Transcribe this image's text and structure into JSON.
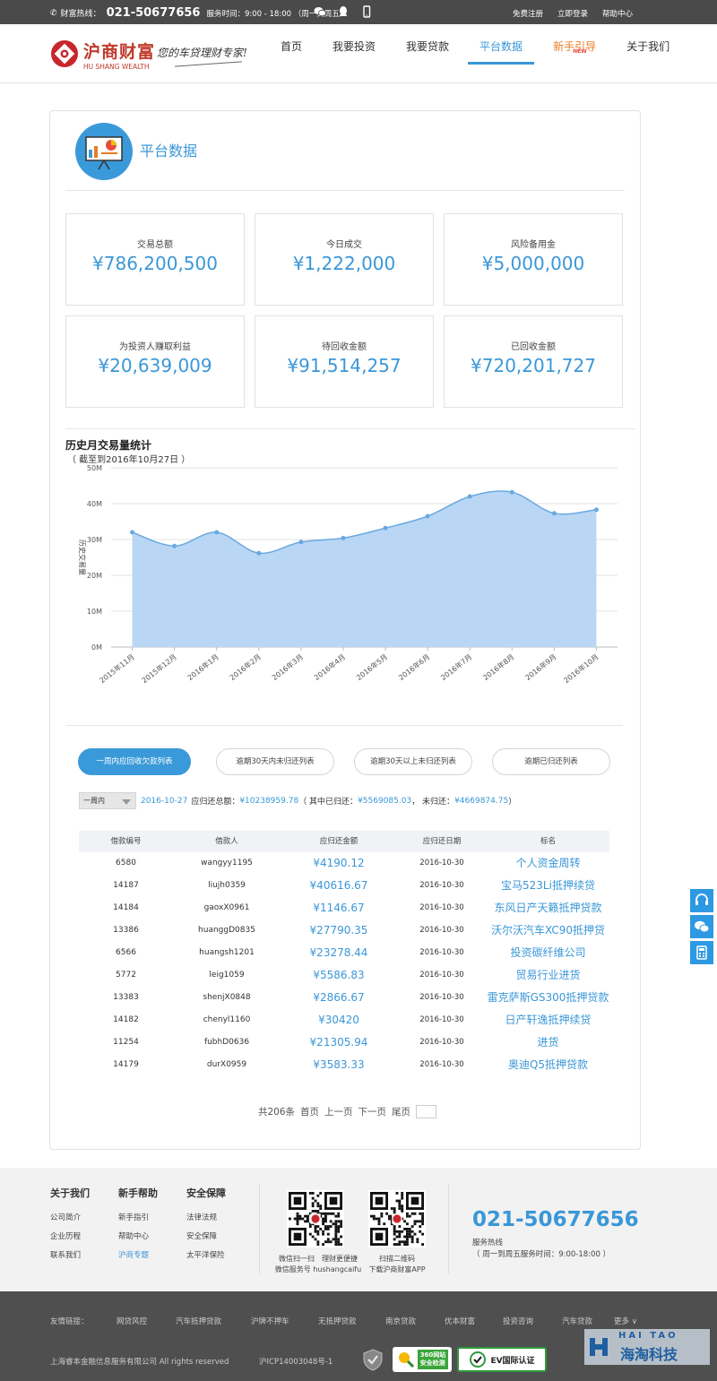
{
  "topbar": {
    "hotline_label": "财富热线：",
    "hotline_number": "021-50677656",
    "service_hours": "服务时间：9:00 - 18:00 （周一到周五）",
    "links": [
      "免费注册",
      "立即登录",
      "帮助中心"
    ]
  },
  "header": {
    "logo_cn": "沪商财富",
    "logo_en": "HU SHANG WEALTH",
    "slogan": "您的车贷理财专家!",
    "nav": [
      "首页",
      "我要投资",
      "我要贷款",
      "平台数据",
      "新手引导",
      "关于我们"
    ],
    "nav_active": "平台数据",
    "new_badge": "NEW"
  },
  "page": {
    "title": "平台数据"
  },
  "stats": [
    {
      "label": "交易总额",
      "value": "¥786,200,500"
    },
    {
      "label": "今日成交",
      "value": "¥1,222,000"
    },
    {
      "label": "风险备用金",
      "value": "¥5,000,000"
    },
    {
      "label": "为投资人赚取利益",
      "value": "¥20,639,009"
    },
    {
      "label": "待回收金额",
      "value": "¥91,514,257"
    },
    {
      "label": "已回收金额",
      "value": "¥720,201,727"
    }
  ],
  "chart_data": {
    "type": "area",
    "title": "历史月交易量统计",
    "subtitle": "（ 截至到2016年10月27日 ）",
    "ylabel": "历史交易量",
    "xlabel": "",
    "categories": [
      "2015年11月",
      "2015年12月",
      "2016年1月",
      "2016年2月",
      "2016年3月",
      "2016年4月",
      "2016年5月",
      "2016年6月",
      "2016年7月",
      "2016年8月",
      "2016年9月",
      "2016年10月"
    ],
    "values": [
      32,
      28.2,
      32,
      26.2,
      29.3,
      30.4,
      33.2,
      36.5,
      42,
      43.2,
      37.3,
      38.3
    ],
    "yticks": [
      "0M",
      "10M",
      "20M",
      "30M",
      "40M",
      "50M"
    ],
    "ylim": [
      0,
      50
    ],
    "grid": true,
    "color": "#b9d6f5",
    "line_color": "#6aa9e0"
  },
  "tabs": [
    "一周内应回收欠款列表",
    "逾期30天内未归还列表",
    "逾期30天以上未归还列表",
    "逾期已归还列表"
  ],
  "filter": {
    "select_value": "一周内",
    "date": "2016-10-27",
    "total_label": "应归还总额：",
    "total": "¥10238959.78",
    "paid_label": "（ 其中已归还：",
    "paid": "¥5569085.03",
    "unpaid_label": "， 未归还：",
    "unpaid": "¥4669874.75",
    "end": "）"
  },
  "table": {
    "headers": [
      "借款编号",
      "借款人",
      "应归还金额",
      "应归还日期",
      "标名"
    ],
    "rows": [
      [
        "6580",
        "wangyy1195",
        "¥4190.12",
        "2016-10-30",
        "个人资金周转"
      ],
      [
        "14187",
        "liujh0359",
        "¥40616.67",
        "2016-10-30",
        "宝马523Li抵押续贷"
      ],
      [
        "14184",
        "gaoxX0961",
        "¥1146.67",
        "2016-10-30",
        "东风日产天籁抵押贷款"
      ],
      [
        "13386",
        "huanggD0835",
        "¥27790.35",
        "2016-10-30",
        "沃尔沃汽车XC90抵押贷"
      ],
      [
        "6566",
        "huangsh1201",
        "¥23278.44",
        "2016-10-30",
        "投资碳纤维公司"
      ],
      [
        "5772",
        "leig1059",
        "¥5586.83",
        "2016-10-30",
        "贸易行业进货"
      ],
      [
        "13383",
        "shenjX0848",
        "¥2866.67",
        "2016-10-30",
        "雷克萨斯GS300抵押贷款"
      ],
      [
        "14182",
        "chenyl1160",
        "¥30420",
        "2016-10-30",
        "日产轩逸抵押续贷"
      ],
      [
        "11254",
        "fubhD0636",
        "¥21305.94",
        "2016-10-30",
        "进货"
      ],
      [
        "14179",
        "durX0959",
        "¥3583.33",
        "2016-10-30",
        "奥迪Q5抵押贷款"
      ]
    ]
  },
  "pager": {
    "total": "共206条",
    "first": "首页",
    "prev": "上一页",
    "next": "下一页",
    "last": "尾页"
  },
  "footer": {
    "col1": {
      "title": "关于我们",
      "links": [
        "公司简介",
        "企业历程",
        "联系我们"
      ]
    },
    "col2": {
      "title": "新手帮助",
      "links": [
        "新手指引",
        "帮助中心",
        "沪商专题"
      ]
    },
    "col3": {
      "title": "安全保障",
      "links": [
        "法律法规",
        "安全保障",
        "太平洋保险"
      ]
    },
    "qr1_caption_1": "微信扫一扫　理财更便捷",
    "qr1_caption_2": "微信服务号 hushangcaifu",
    "qr2_caption_1": "扫描二维码",
    "qr2_caption_2": "下载沪商财富APP",
    "phone": "021-50677656",
    "service_label": "服务热线",
    "service_hours": "（ 周一到周五服务时间：9:00-18:00 ）"
  },
  "bottom": {
    "friends_label": "友情链接：",
    "friends": [
      "网贷风控",
      "汽车抵押贷款",
      "沪牌不押车",
      "无抵押贷款",
      "南京贷款",
      "优本财富",
      "投资咨询",
      "汽车贷款",
      "更多 ∨"
    ],
    "copyright": "上海睿本金融信息服务有限公司 All rights reserved",
    "icp": "沪ICP14003048号-1",
    "badge_360_1": "360网站",
    "badge_360_2": "安全检测",
    "badge_ev": "EV国际认证",
    "watermark_en": "HAI TAO",
    "watermark_cn": "海淘科技"
  }
}
